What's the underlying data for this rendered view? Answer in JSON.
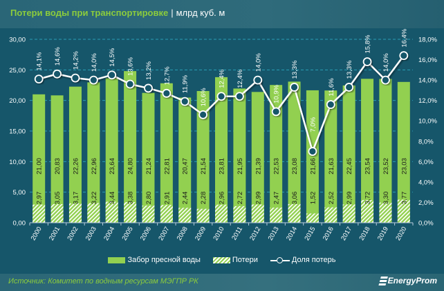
{
  "header": {
    "title": "Потери воды при транспортировке",
    "separator": "|",
    "unit": "млрд куб. м"
  },
  "footer": {
    "source": "Источник: Комитет по водным ресурсам МЭГПР РК",
    "logo": "EnergyProm"
  },
  "colors": {
    "intake": "#92d050",
    "losses_hatch": "#ffffff",
    "line": "#ffffff",
    "background": "#16566a"
  },
  "chart_data": {
    "type": "bar",
    "title": "Потери воды при транспортировке",
    "categories": [
      "2000",
      "2001",
      "2002",
      "2003",
      "2004",
      "2005",
      "2006",
      "2007",
      "2008",
      "2009",
      "2010",
      "2011",
      "2012",
      "2013",
      "2014",
      "2015",
      "2016",
      "2017",
      "2018",
      "2019",
      "2020"
    ],
    "series": [
      {
        "name": "Забор пресной воды",
        "type": "bar",
        "labels": [
          "21,00",
          "20,83",
          "22,26",
          "22,96",
          "23,64",
          "24,80",
          "21,24",
          "22,81",
          "20,47",
          "21,54",
          "23,81",
          "21,95",
          "21,39",
          "22,53",
          "23,08",
          "21,66",
          "21,63",
          "22,45",
          "23,54",
          "23,52",
          "23,03"
        ],
        "values": [
          21.0,
          20.83,
          22.26,
          22.96,
          23.64,
          24.8,
          21.24,
          22.81,
          20.47,
          21.54,
          23.81,
          21.95,
          21.39,
          22.53,
          23.08,
          21.66,
          21.63,
          22.45,
          23.54,
          23.52,
          23.03
        ]
      },
      {
        "name": "Потери",
        "type": "bar",
        "labels": [
          "2,97",
          "3,05",
          "3,17",
          "3,22",
          "3,44",
          "3,38",
          "2,80",
          "2,91",
          "2,44",
          "2,28",
          "2,96",
          "2,72",
          "2,99",
          "2,47",
          "3,06",
          "1,52",
          "2,52",
          "2,99",
          "3,72",
          "3,30",
          "3,77"
        ],
        "values": [
          2.97,
          3.05,
          3.17,
          3.22,
          3.44,
          3.38,
          2.8,
          2.91,
          2.44,
          2.28,
          2.96,
          2.72,
          2.99,
          2.47,
          3.06,
          1.52,
          2.52,
          2.99,
          3.72,
          3.3,
          3.77
        ]
      },
      {
        "name": "Доля потерь",
        "type": "line",
        "axis": "right",
        "labels": [
          "14,1%",
          "14,6%",
          "14,2%",
          "14,0%",
          "14,5%",
          "13,6%",
          "13,2%",
          "12,7%",
          "11,9%",
          "10,6%",
          "12,4%",
          "12,4%",
          "14,0%",
          "10,9%",
          "13,3%",
          "7,0%",
          "11,6%",
          "13,3%",
          "15,8%",
          "14,0%",
          "16,4%"
        ],
        "values": [
          14.1,
          14.6,
          14.2,
          14.0,
          14.5,
          13.6,
          13.2,
          12.7,
          11.9,
          10.6,
          12.4,
          12.4,
          14.0,
          10.9,
          13.3,
          7.0,
          11.6,
          13.3,
          15.8,
          14.0,
          16.4
        ]
      }
    ],
    "left_axis": {
      "ylim": [
        0,
        30
      ],
      "ticks": [
        "0,00",
        "5,00",
        "10,00",
        "15,00",
        "20,00",
        "25,00",
        "30,00"
      ]
    },
    "right_axis": {
      "ylim": [
        0,
        18
      ],
      "ticks": [
        "0,0%",
        "2,0%",
        "4,0%",
        "6,0%",
        "8,0%",
        "10,0%",
        "12,0%",
        "14,0%",
        "16,0%",
        "18,0%"
      ]
    },
    "legend": {
      "position": "bottom",
      "items": [
        "Забор пресной воды",
        "Потери",
        "Доля потерь"
      ]
    },
    "grid": true
  }
}
